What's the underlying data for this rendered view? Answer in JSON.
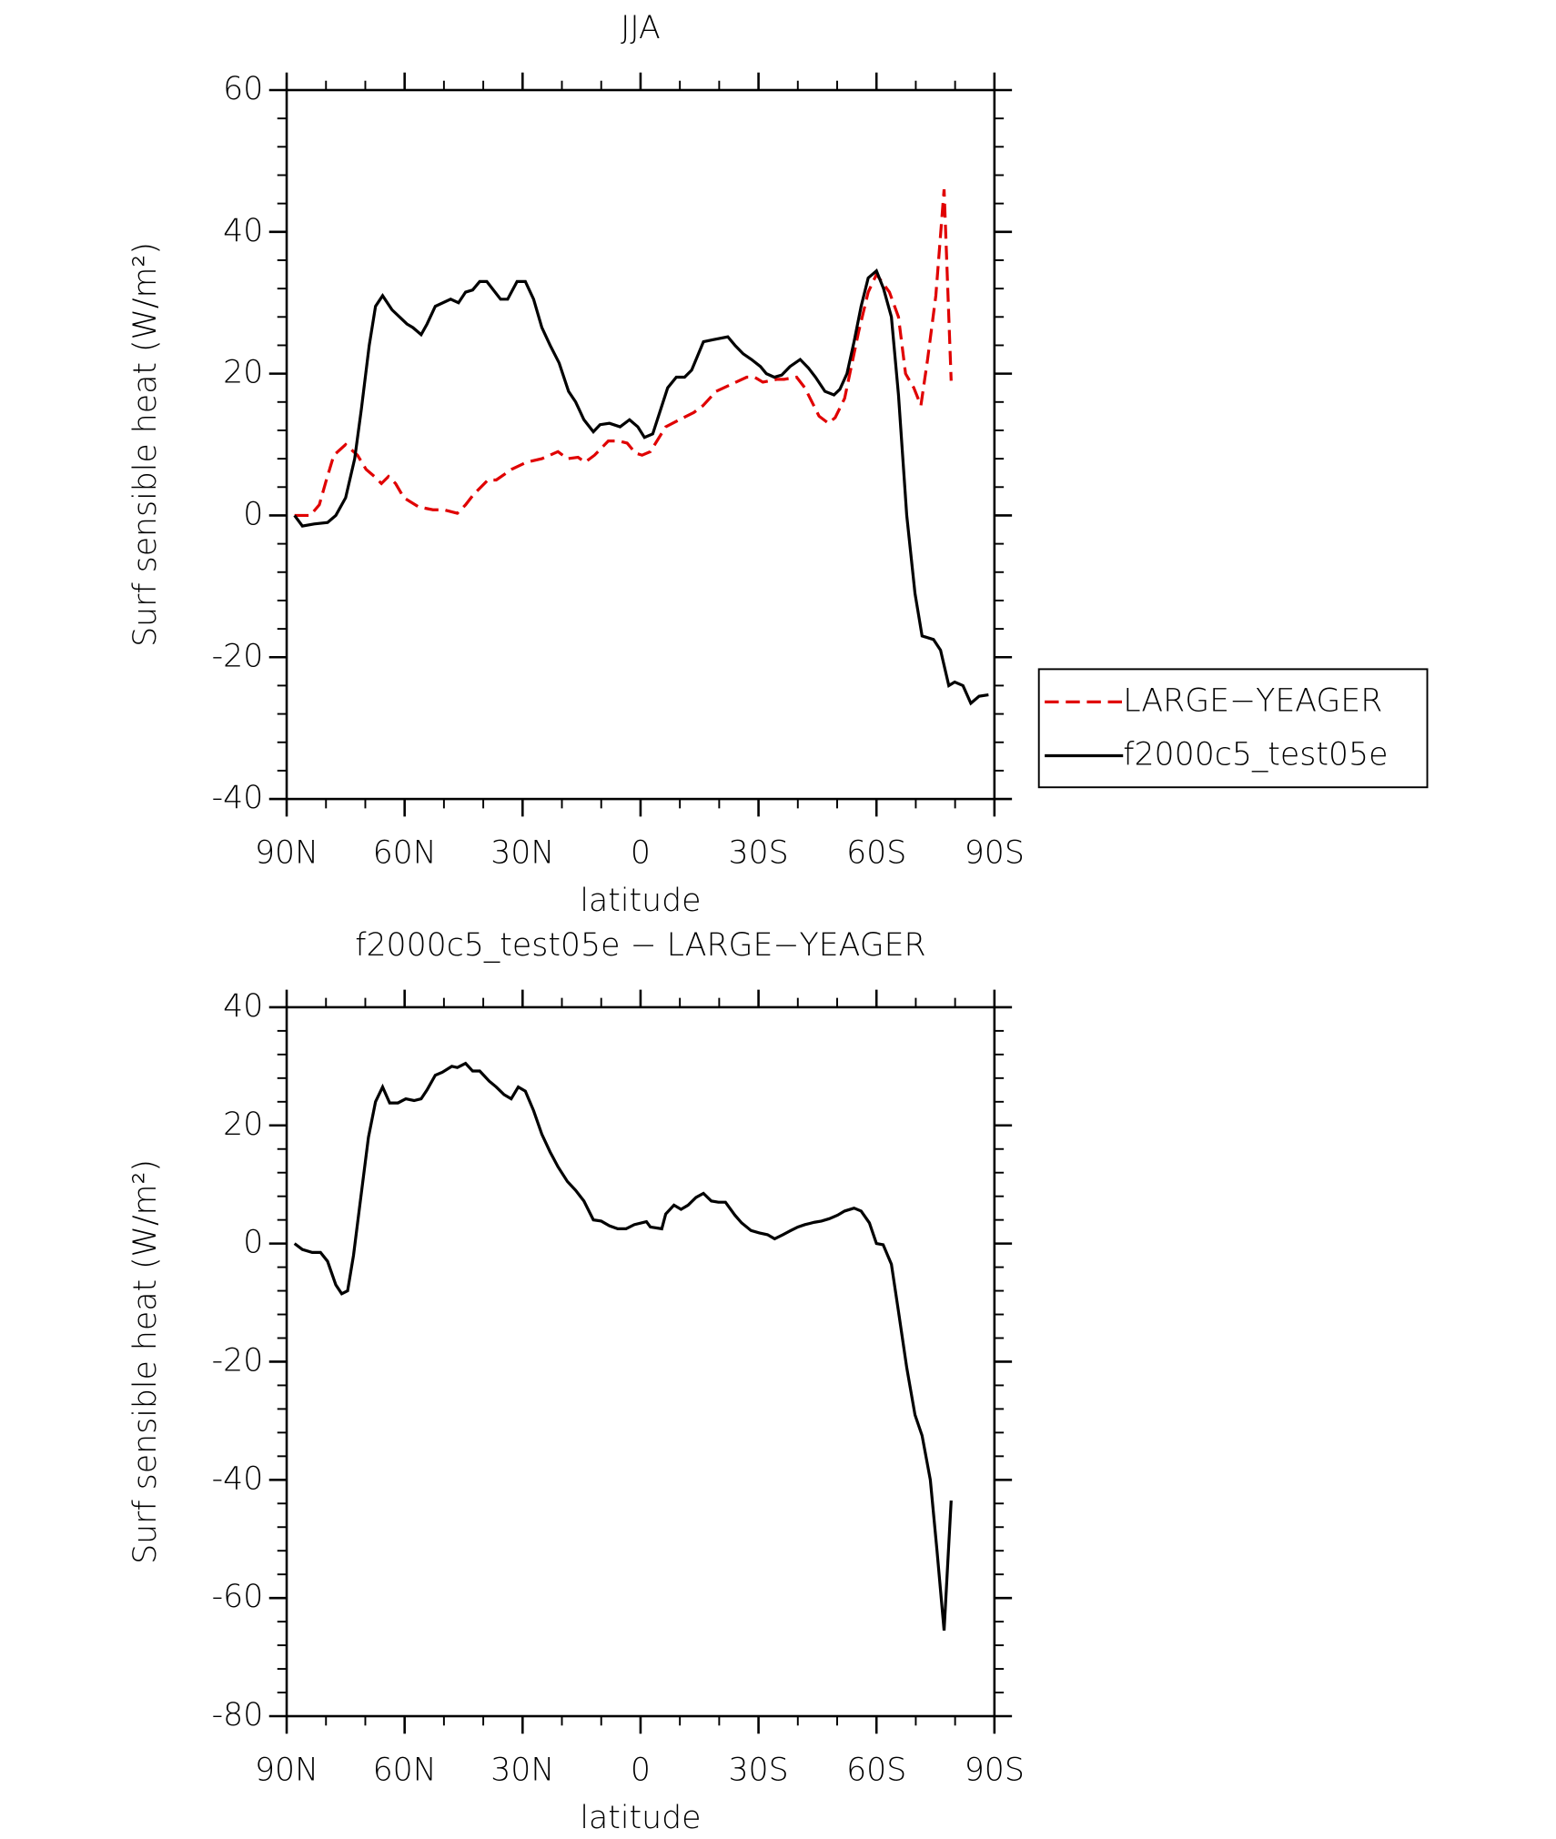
{
  "chart_data": [
    {
      "type": "line",
      "title": "JJA",
      "x_label": "latitude",
      "y_label": "Surf sensible heat (W/m²)",
      "xlim": [
        90,
        -90
      ],
      "xticks": [
        {
          "value": 90,
          "label": "90N"
        },
        {
          "value": 60,
          "label": "60N"
        },
        {
          "value": 30,
          "label": "30N"
        },
        0,
        {
          "value": -30,
          "label": "30S"
        },
        {
          "value": -60,
          "label": "60S"
        },
        {
          "value": -90,
          "label": "90S"
        }
      ],
      "ylim": [
        -40,
        60
      ],
      "yticks": [
        -40,
        -20,
        0,
        20,
        40,
        60
      ],
      "legend": "outside right",
      "series": [
        {
          "name": "LARGE−YEAGER",
          "color": "#e00000",
          "dash": "dashed",
          "x": [
            88,
            84,
            81.7,
            79.9,
            78,
            75,
            72,
            69.8,
            67.7,
            65.9,
            64.1,
            62.3,
            60.2,
            56.4,
            52.8,
            50.1,
            46.6,
            44.5,
            42.4,
            38.8,
            36.7,
            32.8,
            29,
            25.1,
            21,
            18.6,
            15.9,
            14.1,
            11.7,
            8.2,
            5.5,
            3.4,
            1.3,
            -0.4,
            -2.5,
            -6.4,
            -9.9,
            -13.5,
            -15.9,
            -19.2,
            -23.1,
            -27,
            -29,
            -31.1,
            -34.7,
            -36.5,
            -39.7,
            -41.8,
            -45.4,
            -47.8,
            -49.5,
            -51.9,
            -55.5,
            -57.9,
            -60,
            -63.3,
            -65.6,
            -67.4,
            -69.5,
            -71.3,
            -73,
            -75.1,
            -77.2,
            -79
          ],
          "values": [
            0,
            0,
            1.5,
            5,
            8.5,
            10,
            8.5,
            6.5,
            5.5,
            4.5,
            5.5,
            4.5,
            2.5,
            1.2,
            0.8,
            0.8,
            0.3,
            1.5,
            3,
            5,
            5,
            6.5,
            7.5,
            8,
            9,
            8,
            8.2,
            7.5,
            8.5,
            10.5,
            10.5,
            10.2,
            8.8,
            8.5,
            9,
            12.5,
            13.5,
            14.5,
            15.5,
            17.5,
            18.5,
            19.5,
            19.5,
            18.8,
            19.2,
            19.2,
            19.5,
            18,
            14,
            13,
            13.8,
            16.5,
            26,
            31.5,
            34,
            31.5,
            28,
            20,
            18,
            15.5,
            22,
            31,
            46,
            19
          ]
        },
        {
          "name": "f2000c5_test05e",
          "color": "#000000",
          "dash": "solid",
          "x": [
            88,
            86,
            83,
            79.6,
            77.5,
            75,
            72.7,
            71,
            69,
            67.4,
            65.6,
            63.2,
            59.4,
            57.9,
            55.8,
            54.3,
            52.2,
            48.3,
            46.3,
            44.5,
            42.7,
            40.9,
            39.1,
            35.6,
            33.8,
            31.4,
            29.3,
            27.2,
            25.1,
            23,
            20.7,
            18.3,
            16.5,
            14.4,
            12,
            10.3,
            7.9,
            5.2,
            2.8,
            0.7,
            -1,
            -3.1,
            -6.9,
            -9.1,
            -11.2,
            -13,
            -16,
            -18.6,
            -22.2,
            -24,
            -26.1,
            -28.2,
            -30.5,
            -32,
            -34,
            -35.9,
            -38,
            -40.6,
            -42.7,
            -44.5,
            -46.9,
            -49.2,
            -50.7,
            -52.5,
            -54.3,
            -56.1,
            -57.9,
            -60,
            -61.8,
            -63.8,
            -65.6,
            -67.7,
            -69.8,
            -71.6,
            -74.5,
            -76.3,
            -78.4,
            -79.9,
            -82,
            -84,
            -86.1,
            -88.5
          ],
          "values": [
            0,
            -1.5,
            -1.2,
            -1,
            0,
            2.5,
            8,
            15,
            24,
            29.5,
            31,
            29,
            27,
            26.5,
            25.5,
            27,
            29.5,
            30.5,
            30,
            31.5,
            31.8,
            33,
            33,
            30.5,
            30.5,
            33,
            33,
            30.5,
            26.5,
            24,
            21.5,
            17.5,
            16,
            13.5,
            11.8,
            12.8,
            13,
            12.5,
            13.5,
            12.5,
            11,
            11.5,
            18,
            19.5,
            19.5,
            20.5,
            24.5,
            24.8,
            25.2,
            24,
            22.8,
            22,
            21,
            20,
            19.5,
            19.8,
            21,
            22,
            20.8,
            19.5,
            17.5,
            17,
            17.8,
            20,
            24.5,
            29.5,
            33.5,
            34.5,
            32,
            28,
            17,
            0,
            -11,
            -17,
            -17.5,
            -19,
            -24,
            -23.5,
            -24,
            -26.5,
            -25.5,
            -25.3
          ]
        }
      ]
    },
    {
      "type": "line",
      "title": "f2000c5_test05e − LARGE−YEAGER",
      "x_label": "latitude",
      "y_label": "Surf sensible heat (W/m²)",
      "xlim": [
        90,
        -90
      ],
      "xticks": [
        {
          "value": 90,
          "label": "90N"
        },
        {
          "value": 60,
          "label": "60N"
        },
        {
          "value": 30,
          "label": "30N"
        },
        0,
        {
          "value": -30,
          "label": "30S"
        },
        {
          "value": -60,
          "label": "60S"
        },
        {
          "value": -90,
          "label": "90S"
        }
      ],
      "ylim": [
        -80,
        40
      ],
      "yticks": [
        -80,
        -60,
        -40,
        -20,
        0,
        20,
        40
      ],
      "series": [
        {
          "color": "#000000",
          "dash": "solid",
          "x": [
            88,
            86,
            83.5,
            81.4,
            79.6,
            77.5,
            76,
            74.5,
            73,
            71.3,
            69.2,
            67.4,
            65.6,
            63.8,
            61.7,
            59.7,
            57.6,
            55.8,
            54.3,
            52.2,
            50.4,
            48,
            46.6,
            44.5,
            42.7,
            40.9,
            38.5,
            36.7,
            34.7,
            32.9,
            31.1,
            29.3,
            27.2,
            25.1,
            23,
            21,
            18.6,
            16.5,
            14.4,
            12,
            10,
            7.9,
            5.8,
            3.7,
            1.6,
            -1.5,
            -2.5,
            -5.4,
            -6.4,
            -8.5,
            -10.3,
            -12.1,
            -14.1,
            -16,
            -18,
            -19.8,
            -21.6,
            -24,
            -25.7,
            -28.1,
            -30.2,
            -32.3,
            -34.1,
            -36.2,
            -38.2,
            -40,
            -41.8,
            -44.2,
            -46,
            -48,
            -50.1,
            -51.9,
            -54.3,
            -56.1,
            -58.2,
            -60,
            -61.7,
            -63.8,
            -65.6,
            -67.7,
            -69.8,
            -71.6,
            -73.7,
            -75.4,
            -77.2,
            -79
          ],
          "values": [
            0,
            -1,
            -1.5,
            -1.5,
            -3,
            -7,
            -8.5,
            -8,
            -2,
            7,
            18,
            24,
            26.5,
            23.8,
            23.8,
            24.5,
            24.2,
            24.5,
            26,
            28.5,
            29,
            30,
            29.8,
            30.5,
            29.2,
            29.2,
            27.5,
            26.5,
            25.2,
            24.5,
            26.5,
            25.8,
            22.5,
            18.5,
            15.5,
            13,
            10.5,
            9,
            7.2,
            4,
            3.8,
            3,
            2.5,
            2.5,
            3.2,
            3.7,
            2.8,
            2.5,
            5,
            6.5,
            5.8,
            6.5,
            7.8,
            8.5,
            7.2,
            7,
            7,
            4.8,
            3.5,
            2.2,
            1.8,
            1.5,
            0.8,
            1.5,
            2.2,
            2.8,
            3.2,
            3.6,
            3.8,
            4.2,
            4.8,
            5.5,
            6,
            5.5,
            3.5,
            0,
            -0.2,
            -3.5,
            -11.5,
            -21,
            -29,
            -32.5,
            -40,
            -52,
            -65.5,
            -43.5
          ]
        }
      ]
    }
  ]
}
